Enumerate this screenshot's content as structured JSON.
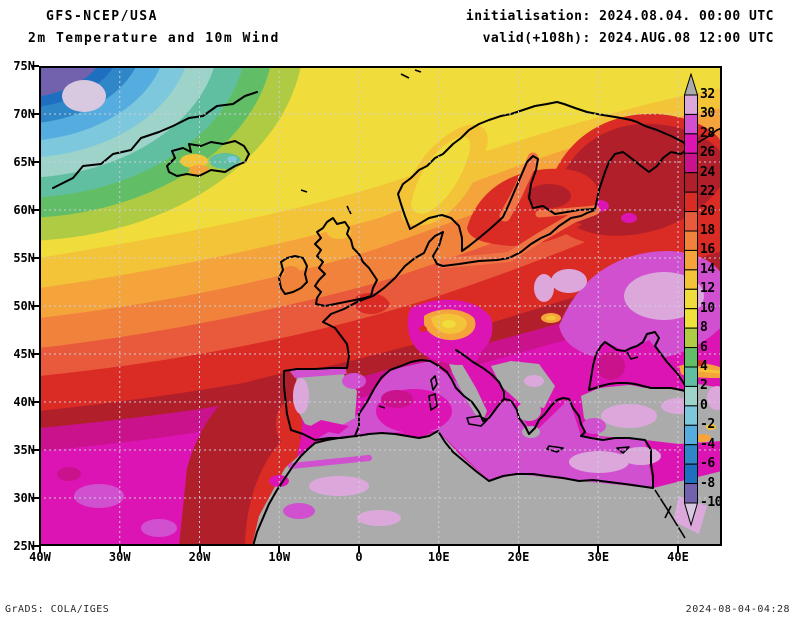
{
  "header": {
    "model": "GFS-NCEP/USA",
    "title": "2m Temperature and 10m Wind",
    "initialisation": "initialisation: 2024.08.04. 00:00 UTC",
    "valid": "valid(+108h): 2024.AUG.08 12:00 UTC"
  },
  "footer": {
    "credit": "GrADS: COLA/IGES",
    "generated": "2024-08-04-04:28"
  },
  "axes": {
    "lat_labels": [
      "75N",
      "70N",
      "65N",
      "60N",
      "55N",
      "50N",
      "45N",
      "40N",
      "35N",
      "30N",
      "25N"
    ],
    "lon_labels": [
      "40W",
      "30W",
      "20W",
      "10W",
      "0",
      "10E",
      "20E",
      "30E",
      "40E"
    ]
  },
  "colorbar": {
    "tick_labels": [
      "32",
      "30",
      "28",
      "26",
      "24",
      "22",
      "20",
      "18",
      "16",
      "14",
      "12",
      "10",
      "8",
      "6",
      "4",
      "2",
      "0",
      "-2",
      "-4",
      "-6",
      "-8",
      "-10"
    ],
    "segment_palette_keys_top_to_bottom": [
      "t30_32",
      "t28_30",
      "t26_28",
      "t24_26",
      "t22_24",
      "t20_22",
      "t18_20",
      "t16_18",
      "t14_16",
      "t12_14",
      "t10_12",
      "t8_10",
      "t6_8",
      "t4_6",
      "t2_4",
      "t0_2",
      "tm2_0",
      "tm4_m2",
      "tm6_m4",
      "tm8_m6",
      "tm10_m8"
    ],
    "above_max_key": "gt32",
    "below_min_key": "lt_m10"
  },
  "palette": {
    "gt32": "#ababab",
    "t30_32": "#dca8dc",
    "t28_30": "#d050d0",
    "t26_28": "#dd14b4",
    "t24_26": "#c9128c",
    "t22_24": "#b1202a",
    "t20_22": "#da2b24",
    "t18_20": "#e9593b",
    "t16_18": "#f0823c",
    "t14_16": "#f5a43c",
    "t12_14": "#f4c438",
    "t10_12": "#f0dc3a",
    "t8_10": "#efe23b",
    "t6_8": "#aecb43",
    "t4_6": "#62be66",
    "t2_4": "#5fbfa0",
    "t0_2": "#9ed3c9",
    "tm2_0": "#7ec8de",
    "tm4_m2": "#55acdf",
    "tm6_m4": "#2f87c8",
    "tm8_m6": "#1f6fc0",
    "tm10_m8": "#7262ae",
    "lt_m10": "#d8c8e0"
  },
  "chart_data": {
    "type": "heatmap",
    "title": "2m Temperature and 10m Wind",
    "model": "GFS-NCEP/USA",
    "initialisation_time": "2024.08.04. 00:00 UTC",
    "valid_time": "2024.AUG.08 12:00 UTC",
    "forecast_hour": "+108h",
    "x_axis_ticks": [
      "40W",
      "30W",
      "20W",
      "10W",
      "0",
      "10E",
      "20E",
      "30E",
      "40E"
    ],
    "y_axis_ticks": [
      "75N",
      "70N",
      "65N",
      "60N",
      "55N",
      "50N",
      "45N",
      "40N",
      "35N",
      "30N",
      "25N"
    ],
    "colorbar_min": -10,
    "colorbar_max": 32,
    "colorbar_interval": 2,
    "colorbar_orientation": "vertical-right",
    "grid": "dashed 10deg lon x 5deg lat"
  }
}
